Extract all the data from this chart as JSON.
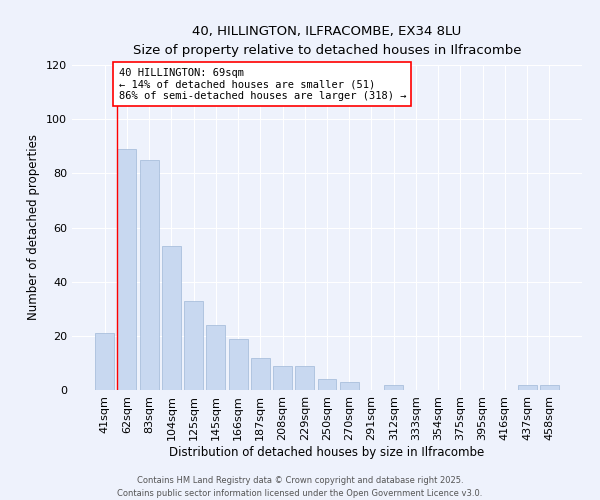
{
  "title": "40, HILLINGTON, ILFRACOMBE, EX34 8LU",
  "subtitle": "Size of property relative to detached houses in Ilfracombe",
  "xlabel": "Distribution of detached houses by size in Ilfracombe",
  "ylabel": "Number of detached properties",
  "bar_labels": [
    "41sqm",
    "62sqm",
    "83sqm",
    "104sqm",
    "125sqm",
    "145sqm",
    "166sqm",
    "187sqm",
    "208sqm",
    "229sqm",
    "250sqm",
    "270sqm",
    "291sqm",
    "312sqm",
    "333sqm",
    "354sqm",
    "375sqm",
    "395sqm",
    "416sqm",
    "437sqm",
    "458sqm"
  ],
  "bar_values": [
    21,
    89,
    85,
    53,
    33,
    24,
    19,
    12,
    9,
    9,
    4,
    3,
    0,
    2,
    0,
    0,
    0,
    0,
    0,
    2,
    2
  ],
  "bar_color": "#c8d8f0",
  "bar_edge_color": "#a0b8d8",
  "annotation_text_line1": "40 HILLINGTON: 69sqm",
  "annotation_text_line2": "← 14% of detached houses are smaller (51)",
  "annotation_text_line3": "86% of semi-detached houses are larger (318) →",
  "ylim": [
    0,
    120
  ],
  "yticks": [
    0,
    20,
    40,
    60,
    80,
    100,
    120
  ],
  "footer1": "Contains HM Land Registry data © Crown copyright and database right 2025.",
  "footer2": "Contains public sector information licensed under the Open Government Licence v3.0.",
  "bg_color": "#eef2fc",
  "grid_color": "#ffffff"
}
